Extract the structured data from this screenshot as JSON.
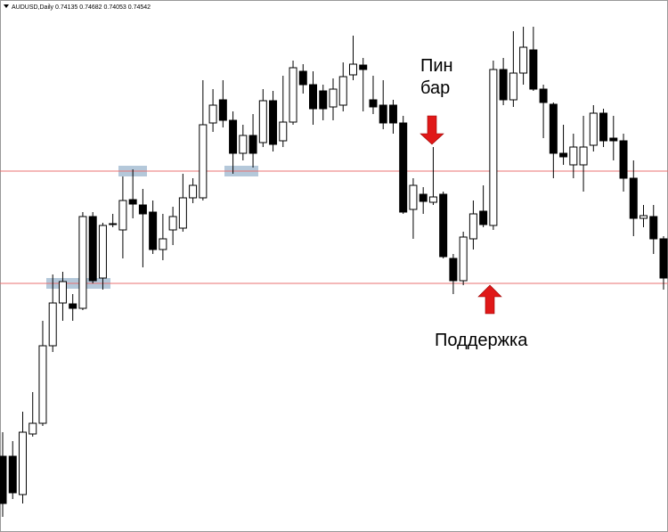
{
  "chart_data": {
    "type": "candlestick",
    "title": "AUDUSD,Daily  0.74135 0.74682 0.74053 0.74542",
    "annotations": [
      "Пин бар",
      "Поддержка"
    ],
    "ylim": [
      0,
      600
    ],
    "levels": [
      408,
      282
    ],
    "level_color": "#e87070",
    "up_color": "#ffffff",
    "down_color": "#000000",
    "open": [
      88,
      88,
      45,
      113,
      125,
      212,
      260,
      259,
      254,
      357,
      288,
      349,
      342,
      376,
      370,
      362,
      320,
      342,
      344,
      378,
      378,
      462,
      488,
      465,
      428,
      448,
      440,
      487,
      442,
      463,
      520,
      505,
      498,
      480,
      482,
      516,
      527,
      488,
      482,
      482,
      462,
      365,
      382,
      373,
      382,
      310,
      285,
      332,
      363,
      347,
      522,
      488,
      518,
      544,
      500,
      483,
      428,
      415,
      415,
      437,
      473,
      445,
      442,
      400,
      355,
      357,
      332
    ],
    "high": [
      115,
      105,
      138,
      160,
      240,
      292,
      295,
      270,
      362,
      362,
      350,
      360,
      402,
      410,
      388,
      375,
      360,
      368,
      405,
      400,
      510,
      500,
      510,
      475,
      460,
      472,
      500,
      498,
      515,
      532,
      528,
      520,
      505,
      512,
      530,
      560,
      535,
      515,
      510,
      488,
      470,
      400,
      390,
      435,
      385,
      315,
      340,
      375,
      392,
      532,
      535,
      565,
      570,
      570,
      505,
      485,
      460,
      450,
      470,
      482,
      478,
      470,
      450,
      420,
      370,
      370,
      335
    ],
    "low": [
      20,
      40,
      35,
      110,
      122,
      205,
      240,
      240,
      252,
      282,
      275,
      345,
      310,
      355,
      300,
      315,
      308,
      325,
      340,
      372,
      375,
      452,
      457,
      405,
      420,
      412,
      435,
      430,
      435,
      460,
      495,
      460,
      465,
      465,
      475,
      510,
      475,
      472,
      455,
      450,
      360,
      332,
      360,
      370,
      310,
      270,
      280,
      320,
      345,
      342,
      482,
      480,
      505,
      498,
      445,
      400,
      415,
      400,
      385,
      430,
      435,
      420,
      385,
      335,
      345,
      315,
      275
    ],
    "close": [
      35,
      47,
      115,
      125,
      212,
      260,
      284,
      254,
      357,
      285,
      347,
      348,
      375,
      371,
      360,
      320,
      332,
      357,
      378,
      392,
      460,
      482,
      465,
      428,
      448,
      428,
      487,
      438,
      463,
      524,
      505,
      478,
      478,
      500,
      514,
      528,
      522,
      480,
      462,
      462,
      362,
      392,
      374,
      379,
      312,
      285,
      334,
      360,
      348,
      522,
      488,
      518,
      547,
      500,
      485,
      428,
      424,
      435,
      435,
      473,
      442,
      442,
      400,
      355,
      358,
      332,
      288
    ]
  }
}
